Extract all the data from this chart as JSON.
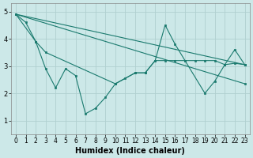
{
  "xlabel": "Humidex (Indice chaleur)",
  "xlim": [
    -0.5,
    23.5
  ],
  "ylim": [
    0.5,
    5.3
  ],
  "yticks": [
    1,
    2,
    3,
    4,
    5
  ],
  "xticks": [
    0,
    1,
    2,
    3,
    4,
    5,
    6,
    7,
    8,
    9,
    10,
    11,
    12,
    13,
    14,
    15,
    16,
    17,
    18,
    19,
    20,
    21,
    22,
    23
  ],
  "bg_color": "#cce8e8",
  "grid_color": "#b0d0d0",
  "line_color": "#1a7a6e",
  "series": [
    {
      "x": [
        0,
        1,
        2,
        3,
        4,
        5,
        6,
        7,
        8,
        9,
        10,
        11,
        12,
        13,
        14,
        15,
        16,
        17,
        19,
        20,
        21,
        22,
        23
      ],
      "y": [
        4.9,
        4.6,
        3.9,
        2.9,
        2.2,
        2.9,
        2.65,
        1.25,
        1.45,
        1.85,
        2.35,
        2.55,
        2.75,
        2.75,
        3.2,
        4.5,
        3.8,
        3.2,
        2.0,
        2.45,
        3.05,
        3.6,
        3.05
      ]
    },
    {
      "x": [
        0,
        2,
        3,
        10,
        12,
        13,
        14,
        15,
        16,
        17,
        18,
        19,
        20,
        21,
        22,
        23
      ],
      "y": [
        4.9,
        3.9,
        3.5,
        2.35,
        2.75,
        2.75,
        3.2,
        3.2,
        3.2,
        3.2,
        3.2,
        3.2,
        3.2,
        3.05,
        3.1,
        3.05
      ]
    },
    {
      "x": [
        0,
        23
      ],
      "y": [
        4.9,
        3.05
      ]
    },
    {
      "x": [
        0,
        23
      ],
      "y": [
        4.9,
        2.35
      ]
    }
  ]
}
